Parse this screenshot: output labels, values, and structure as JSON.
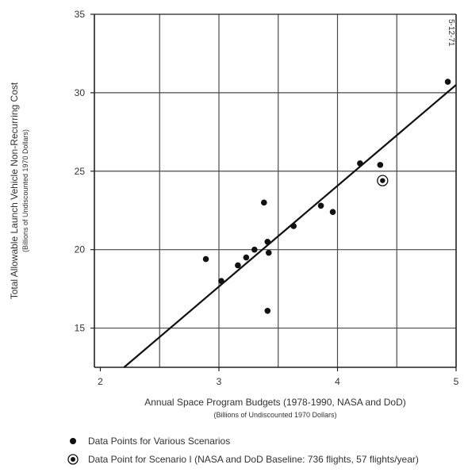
{
  "chart_data": {
    "type": "scatter",
    "xlabel": "Annual Space Program Budgets (1978-1990, NASA and DoD)",
    "xlabel_sub": "(Billions of Undiscounted 1970 Dollars)",
    "ylabel": "Total Allowable Launch Vehicle Non-Recurring Cost",
    "ylabel_sub": "(Billions of Undiscounted 1970 Dollars)",
    "xlim": [
      1.95,
      5.0
    ],
    "ylim": [
      12.5,
      35
    ],
    "x_ticks": [
      2,
      3,
      4,
      5
    ],
    "x_tick_labels": [
      "2",
      "3",
      "4",
      "5"
    ],
    "y_ticks": [
      15,
      20,
      25,
      30,
      35
    ],
    "y_tick_labels": [
      "15",
      "20",
      "25",
      "30",
      "35"
    ],
    "x_grid": [
      2.5,
      3.0,
      3.5,
      4.0,
      4.5
    ],
    "y_grid": [
      15,
      20,
      25,
      30
    ],
    "annotation": "5-12-71",
    "series": [
      {
        "name": "Data Points for Various Scenarios",
        "marker": "filled-circle",
        "points": [
          [
            2.89,
            19.4
          ],
          [
            3.02,
            18.0
          ],
          [
            3.16,
            19.0
          ],
          [
            3.23,
            19.5
          ],
          [
            3.3,
            20.0
          ],
          [
            3.38,
            23.0
          ],
          [
            3.41,
            20.5
          ],
          [
            3.42,
            19.8
          ],
          [
            3.41,
            16.1
          ],
          [
            3.63,
            21.5
          ],
          [
            3.86,
            22.8
          ],
          [
            3.96,
            22.4
          ],
          [
            4.19,
            25.5
          ],
          [
            4.36,
            25.4
          ],
          [
            4.93,
            30.7
          ]
        ]
      },
      {
        "name": "Data Point for Scenario I (NASA and DoD Baseline: 736 flights, 57 flights/year)",
        "marker": "circled-dot",
        "points": [
          [
            4.38,
            24.4
          ]
        ]
      }
    ],
    "trend_line": {
      "from": [
        2.2,
        12.5
      ],
      "to": [
        5.0,
        30.5
      ]
    }
  }
}
